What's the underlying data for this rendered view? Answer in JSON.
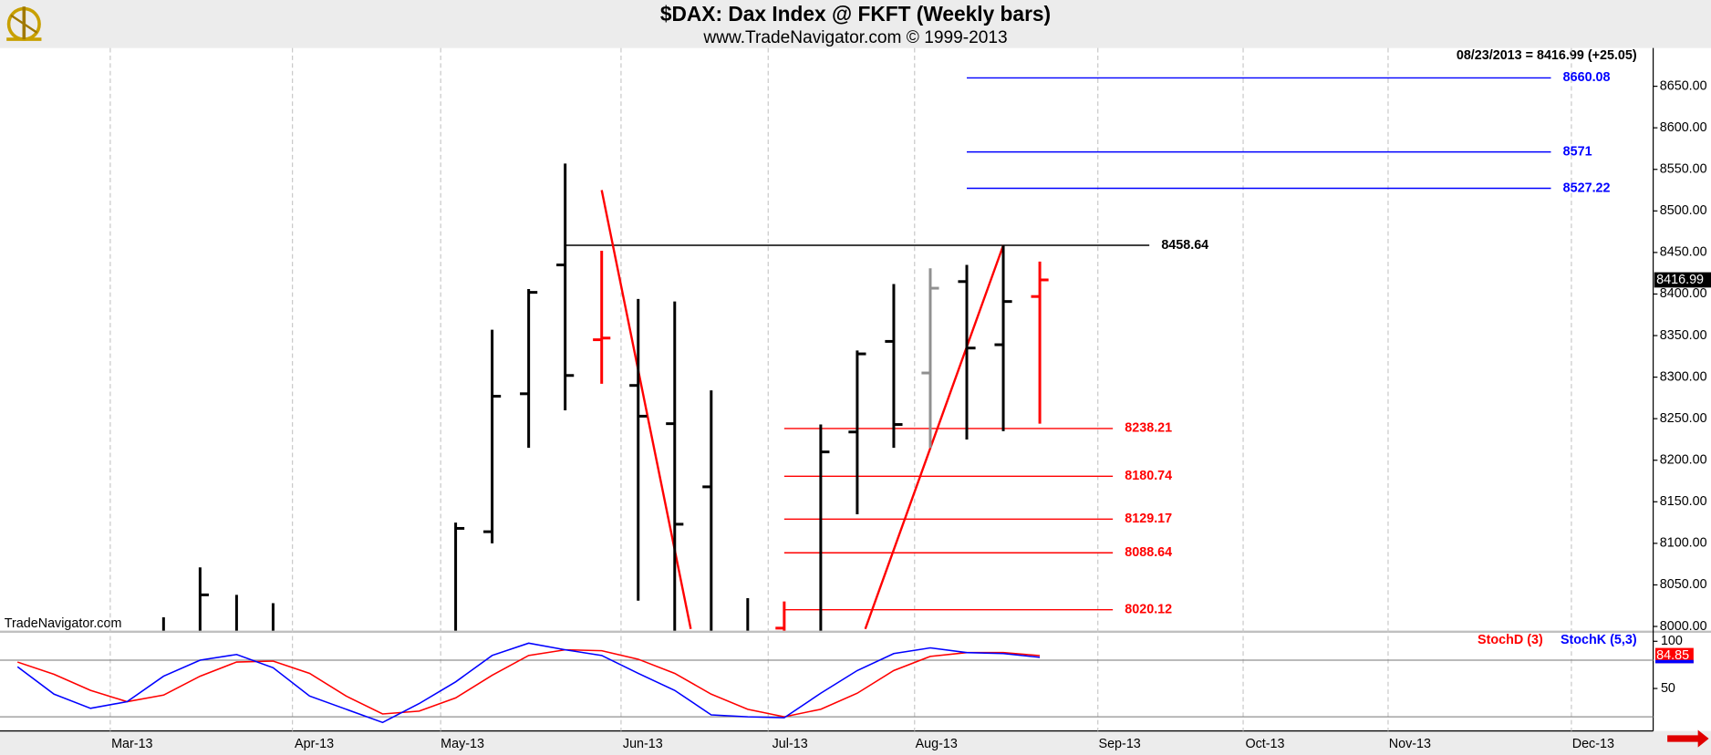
{
  "chart_data": [
    {
      "type": "ohlc",
      "title": "$DAX:  Dax Index @ FKFT  (Weekly bars)",
      "subtitle": "www.TradeNavigator.com © 1999-2013",
      "header_note": "08/23/2013 = 8416.99 (+25.05)",
      "watermark": "TradeNavigator.com",
      "x": [
        0,
        1,
        2,
        3,
        8,
        9,
        10,
        11,
        12,
        13,
        14,
        15,
        16,
        17,
        18,
        19,
        20,
        21,
        22,
        23,
        24
      ],
      "open": [
        7985,
        7990,
        7990,
        7985,
        7990,
        8114,
        8280,
        8435,
        8345,
        8290,
        8244,
        8168,
        7990,
        7998,
        7990,
        8234,
        8343,
        8305,
        8415,
        8339,
        8397
      ],
      "high": [
        8011,
        8071,
        8038,
        8028,
        8125,
        8357,
        8406,
        8557,
        8452,
        8394,
        8391,
        8284,
        8034,
        8030,
        8243,
        8332,
        8412,
        8431,
        8435,
        8458.64,
        8439
      ],
      "low": [
        7950,
        7960,
        7970,
        7960,
        7960,
        8100,
        8215,
        8260,
        8292,
        8031,
        7980,
        7960,
        7950,
        7950,
        7960,
        8135,
        8215,
        8215,
        8225,
        8235,
        8244
      ],
      "close": [
        7990,
        8038,
        7985,
        7990,
        8118,
        8277,
        8402,
        8302,
        8347,
        8253,
        8123,
        7985,
        7970,
        7990,
        8210,
        8328,
        8243,
        8407,
        8335,
        8391,
        8416.99
      ],
      "bar_colors": [
        "#000000",
        "#000000",
        "#000000",
        "#000000",
        "#000000",
        "#000000",
        "#000000",
        "#000000",
        "#ff0000",
        "#000000",
        "#000000",
        "#000000",
        "#000000",
        "#ff0000",
        "#000000",
        "#000000",
        "#000000",
        "#909090",
        "#000000",
        "#000000",
        "#ff0000"
      ],
      "xlim": [
        -4.48,
        40.8
      ],
      "xticks": [
        {
          "value": -1.46,
          "label": "Mar-13"
        },
        {
          "value": 3.53,
          "label": "Apr-13"
        },
        {
          "value": 7.59,
          "label": "May-13"
        },
        {
          "value": 12.53,
          "label": "Jun-13"
        },
        {
          "value": 16.56,
          "label": "Jul-13"
        },
        {
          "value": 20.57,
          "label": "Aug-13"
        },
        {
          "value": 25.59,
          "label": "Sep-13"
        },
        {
          "value": 29.57,
          "label": "Oct-13"
        },
        {
          "value": 33.54,
          "label": "Nov-13"
        },
        {
          "value": 38.56,
          "label": "Dec-13"
        }
      ],
      "ylim": [
        7995,
        8696
      ],
      "yticks": [
        {
          "value": 8000,
          "label": "8000.00"
        },
        {
          "value": 8050,
          "label": "8050.00"
        },
        {
          "value": 8100,
          "label": "8100.00"
        },
        {
          "value": 8150,
          "label": "8150.00"
        },
        {
          "value": 8200,
          "label": "8200.00"
        },
        {
          "value": 8250,
          "label": "8250.00"
        },
        {
          "value": 8300,
          "label": "8300.00"
        },
        {
          "value": 8350,
          "label": "8350.00"
        },
        {
          "value": 8400,
          "label": "8400.00"
        },
        {
          "value": 8450,
          "label": "8450.00"
        },
        {
          "value": 8500,
          "label": "8500.00"
        },
        {
          "value": 8550,
          "label": "8550.00"
        },
        {
          "value": 8600,
          "label": "8600.00"
        },
        {
          "value": 8650,
          "label": "8650.00"
        }
      ],
      "levels": [
        {
          "value": 8660.08,
          "color": "#0000ff",
          "start": 22,
          "end": 38
        },
        {
          "value": 8571.0,
          "color": "#0000ff",
          "start": 22,
          "end": 38
        },
        {
          "value": 8527.22,
          "color": "#0000ff",
          "start": 22,
          "end": 38
        },
        {
          "value": 8458.64,
          "color": "#000000",
          "start": 11,
          "end": 27
        },
        {
          "value": 8238.21,
          "color": "#ff0000",
          "start": 17,
          "end": 26
        },
        {
          "value": 8180.74,
          "color": "#ff0000",
          "start": 17,
          "end": 26
        },
        {
          "value": 8129.17,
          "color": "#ff0000",
          "start": 17,
          "end": 26
        },
        {
          "value": 8088.64,
          "color": "#ff0000",
          "start": 17,
          "end": 26
        },
        {
          "value": 8020.12,
          "color": "#ff0000",
          "start": 17,
          "end": 26
        }
      ],
      "trendlines": [
        {
          "color": "#ff0000",
          "x": [
            12,
            14.44
          ],
          "y": [
            8525,
            7997
          ]
        },
        {
          "color": "#ff0000",
          "x": [
            19.22,
            23
          ],
          "y": [
            7997,
            8458.64
          ]
        }
      ]
    },
    {
      "type": "line",
      "x": [
        -4,
        -3,
        -2,
        -1,
        0,
        1,
        2,
        3,
        4,
        5,
        6,
        7,
        8,
        9,
        10,
        11,
        12,
        13,
        14,
        15,
        16,
        17,
        18,
        19,
        20,
        21,
        22,
        23,
        24
      ],
      "series": [
        {
          "name": "StochD (3)",
          "color": "#ff0000",
          "values": [
            78,
            65,
            48,
            36,
            43,
            63,
            78,
            79,
            66,
            42,
            23,
            26,
            40,
            64,
            85,
            91,
            90,
            81,
            66,
            44,
            28,
            20,
            28,
            45,
            69,
            84,
            88,
            88,
            84.85
          ]
        },
        {
          "name": "StochK (5,3)",
          "color": "#0000ff",
          "values": [
            73,
            44,
            29,
            36,
            63,
            80,
            86,
            72,
            42,
            28,
            14,
            34,
            57,
            85,
            98,
            91,
            85,
            66,
            48,
            22,
            20,
            19,
            45,
            69,
            87,
            93,
            88,
            87,
            83
          ]
        }
      ],
      "ylim": [
        5,
        109
      ],
      "yticks": [
        100,
        50
      ],
      "levels": [
        80,
        20
      ]
    }
  ]
}
